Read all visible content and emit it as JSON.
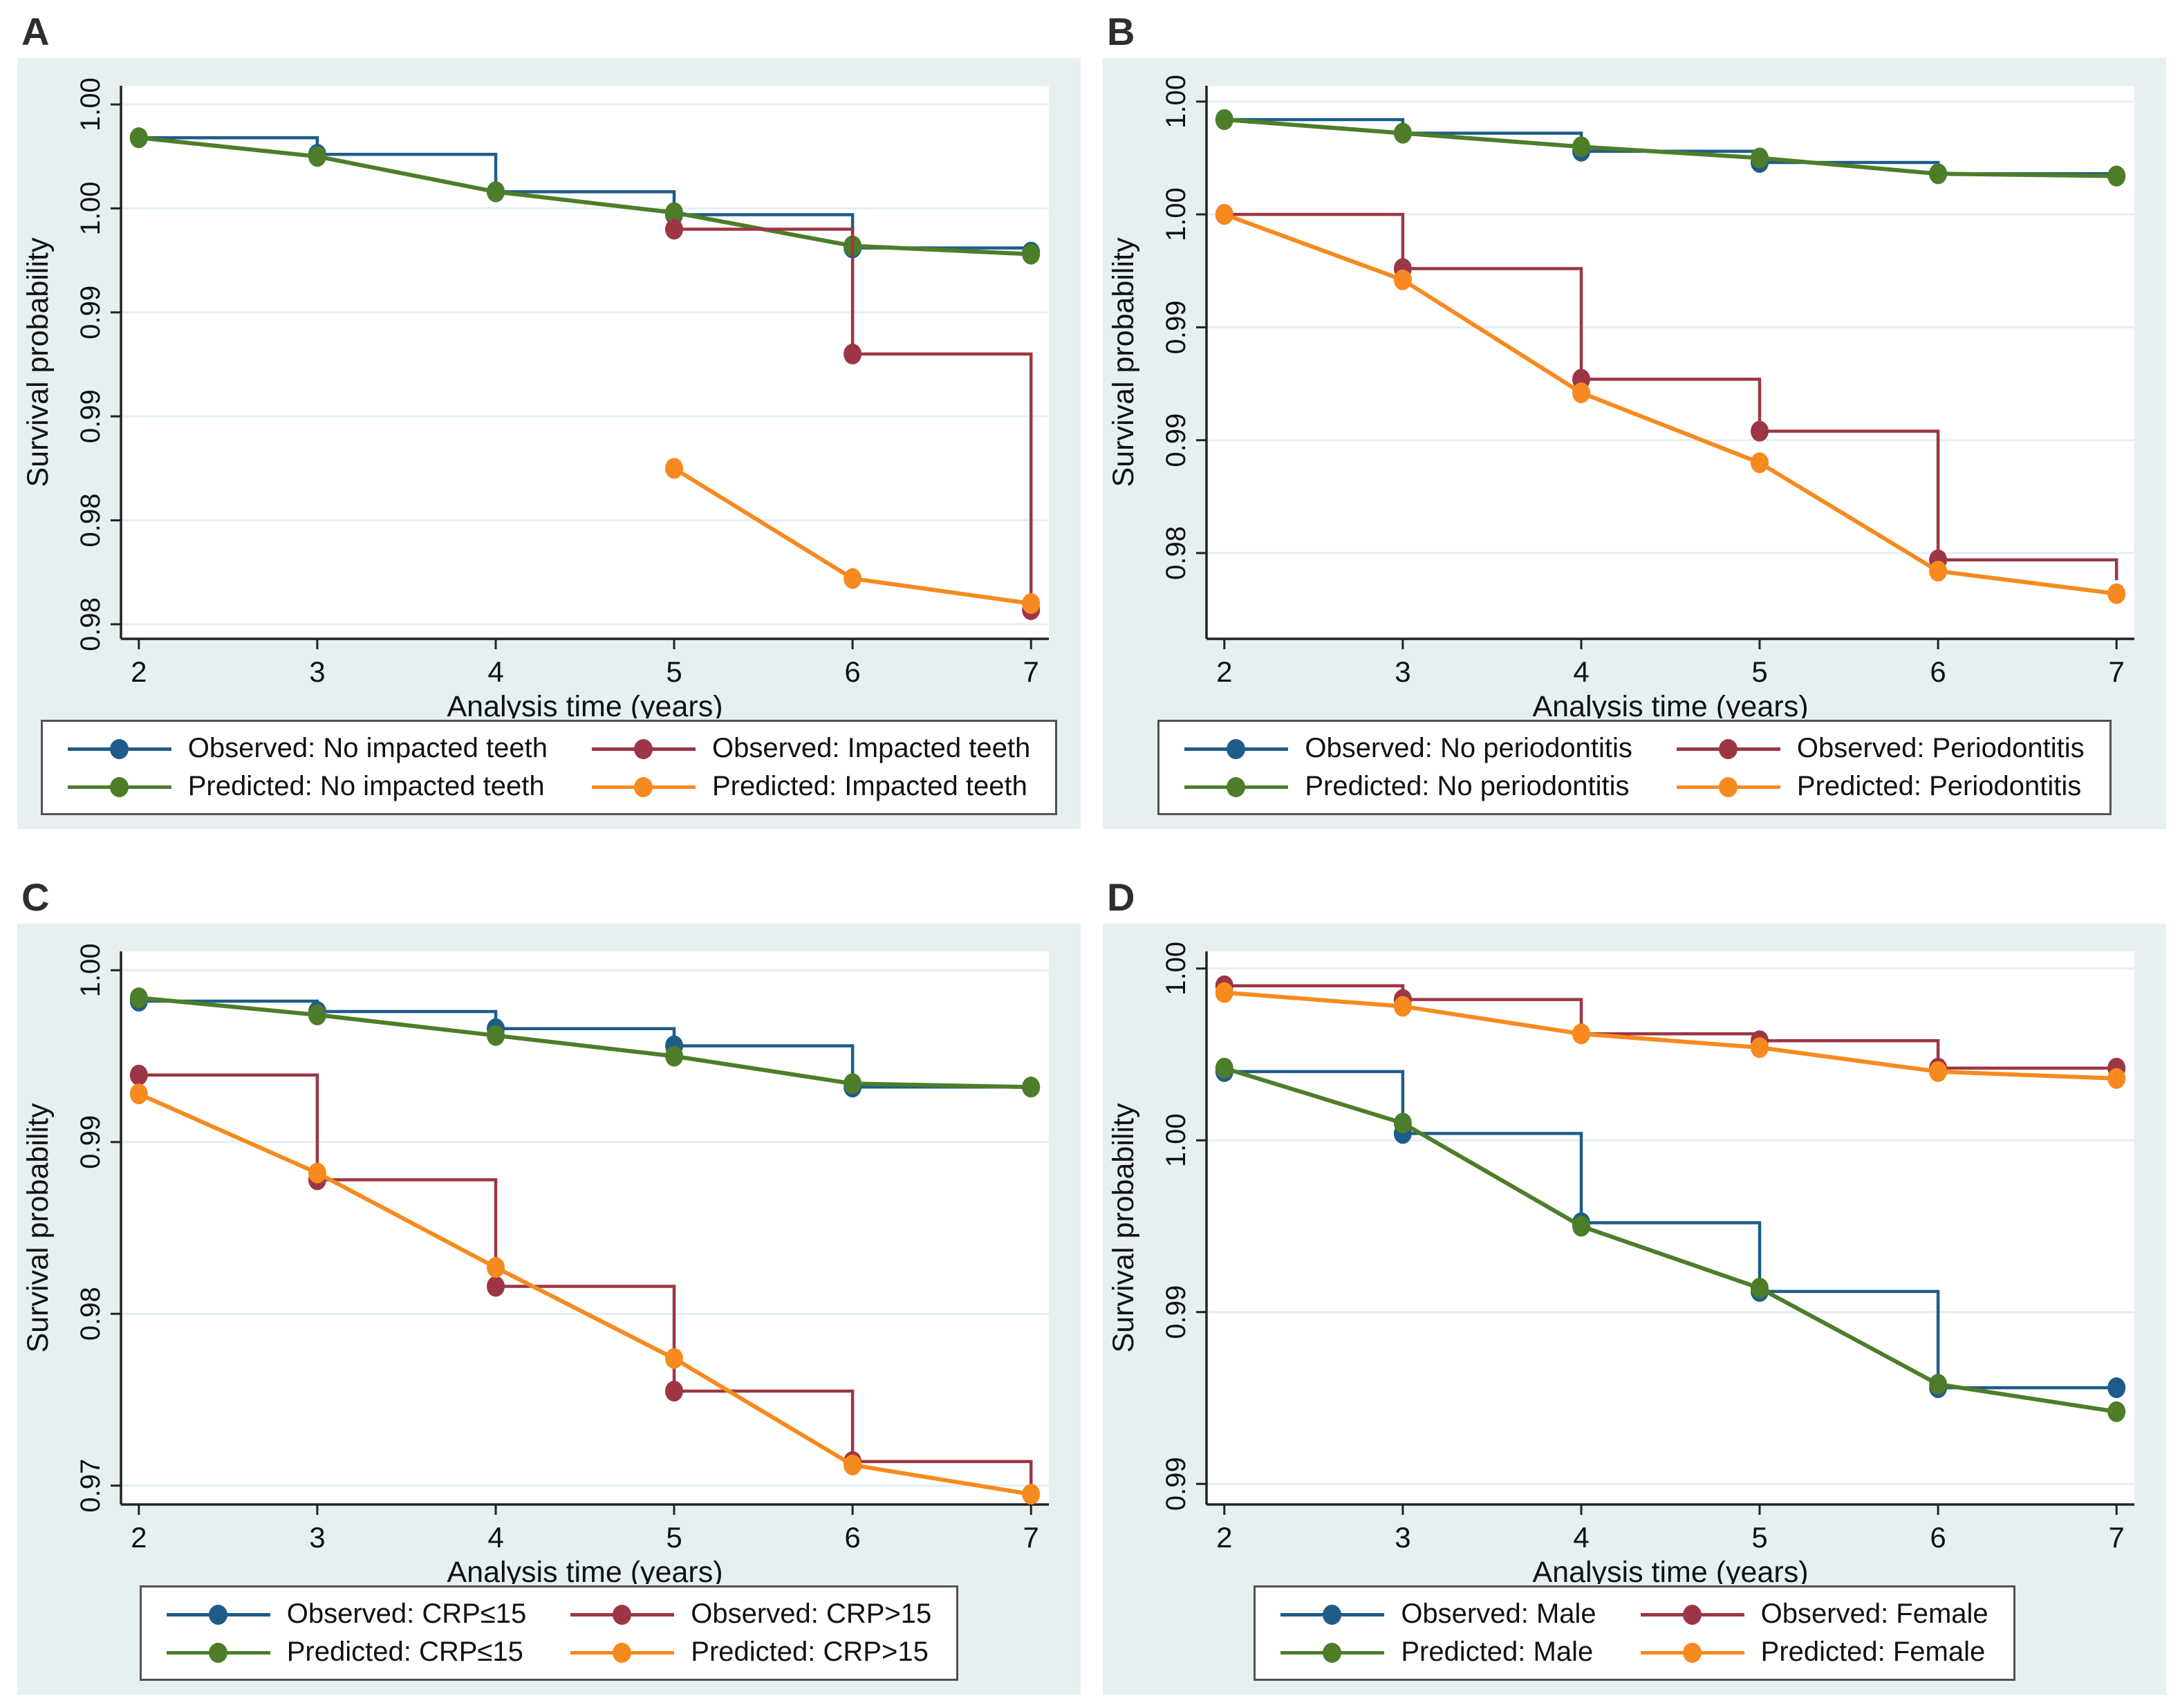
{
  "figure": {
    "background": "#ffffff",
    "panel_background": "#e6f0f1",
    "gridline_color": "#e3eef3",
    "axis_color": "#222222",
    "legend_border_color": "#525252"
  },
  "panels": [
    {
      "label": "A",
      "chart_data": {
        "type": "line",
        "title": "",
        "xlabel": "Analysis time (years)",
        "ylabel": "Survival probability",
        "x_ticks": [
          2,
          3,
          4,
          5,
          6,
          7
        ],
        "xlim": [
          1.9,
          7.1
        ],
        "ylim": [
          0.9743,
          1.0009
        ],
        "grid": true,
        "legend_position": "below",
        "y_ticks": [
          {
            "value": 1.0,
            "label": "1.00"
          },
          {
            "value": 0.995,
            "label": "1.00"
          },
          {
            "value": 0.99,
            "label": "0.99"
          },
          {
            "value": 0.985,
            "label": "0.99"
          },
          {
            "value": 0.98,
            "label": "0.98"
          },
          {
            "value": 0.975,
            "label": "0.98"
          }
        ],
        "series": [
          {
            "name": "Observed: No impacted teeth",
            "style": "step",
            "color": "#1e5c8a",
            "z": 1,
            "x": [
              2,
              3,
              4,
              5,
              6,
              7
            ],
            "y": [
              0.9984,
              0.9976,
              0.9958,
              0.9947,
              0.9931,
              0.9929
            ]
          },
          {
            "name": "Observed: Impacted teeth",
            "style": "step",
            "color": "#9d3644",
            "z": 3,
            "x": [
              5,
              6,
              7
            ],
            "y": [
              0.994,
              0.988,
              0.9757
            ]
          },
          {
            "name": "Predicted: No impacted teeth",
            "style": "line",
            "color": "#4d7d29",
            "z": 2,
            "x": [
              2,
              3,
              4,
              5,
              6,
              7
            ],
            "y": [
              0.9984,
              0.9975,
              0.9958,
              0.9948,
              0.9932,
              0.9928
            ]
          },
          {
            "name": "Predicted: Impacted teeth",
            "style": "line",
            "color": "#f68a1e",
            "z": 4,
            "x": [
              5,
              6,
              7
            ],
            "y": [
              0.9825,
              0.9772,
              0.976
            ]
          }
        ]
      }
    },
    {
      "label": "B",
      "chart_data": {
        "type": "line",
        "title": "",
        "xlabel": "Analysis time (years)",
        "ylabel": "Survival probability",
        "x_ticks": [
          2,
          3,
          4,
          5,
          6,
          7
        ],
        "xlim": [
          1.9,
          7.1
        ],
        "ylim": [
          0.9762,
          1.0007
        ],
        "grid": true,
        "legend_position": "below",
        "y_ticks": [
          {
            "value": 1.0,
            "label": "1.00"
          },
          {
            "value": 0.995,
            "label": "1.00"
          },
          {
            "value": 0.99,
            "label": "0.99"
          },
          {
            "value": 0.985,
            "label": "0.99"
          },
          {
            "value": 0.98,
            "label": "0.98"
          }
        ],
        "series": [
          {
            "name": "Observed: No periodontitis",
            "style": "step",
            "color": "#1e5c8a",
            "z": 1,
            "x": [
              2,
              3,
              4,
              5,
              6,
              7
            ],
            "y": [
              0.9992,
              0.9986,
              0.9978,
              0.9973,
              0.9968,
              0.9967
            ]
          },
          {
            "name": "Observed: Periodontitis",
            "style": "step",
            "color": "#9d3644",
            "z": 3,
            "x": [
              2,
              3,
              4,
              5,
              6,
              7
            ],
            "y": [
              0.995,
              0.9926,
              0.9877,
              0.9854,
              0.9797,
              0.9788
            ],
            "marker_x": [
              2,
              3,
              4,
              5,
              6
            ]
          },
          {
            "name": "Predicted: No periodontitis",
            "style": "line",
            "color": "#4d7d29",
            "z": 2,
            "x": [
              2,
              3,
              4,
              5,
              6,
              7
            ],
            "y": [
              0.9992,
              0.9986,
              0.998,
              0.9975,
              0.9968,
              0.9967
            ]
          },
          {
            "name": "Predicted: Periodontitis",
            "style": "line",
            "color": "#f68a1e",
            "z": 4,
            "x": [
              2,
              3,
              4,
              5,
              6,
              7
            ],
            "y": [
              0.995,
              0.9921,
              0.9871,
              0.984,
              0.9792,
              0.9782
            ]
          }
        ]
      }
    },
    {
      "label": "C",
      "chart_data": {
        "type": "line",
        "title": "",
        "xlabel": "Analysis time (years)",
        "ylabel": "Survival probability",
        "x_ticks": [
          2,
          3,
          4,
          5,
          6,
          7
        ],
        "xlim": [
          1.9,
          7.1
        ],
        "ylim": [
          0.9689,
          1.0011
        ],
        "grid": true,
        "legend_position": "below",
        "y_ticks": [
          {
            "value": 1.0,
            "label": "1.00"
          },
          {
            "value": 0.99,
            "label": "0.99"
          },
          {
            "value": 0.98,
            "label": "0.98"
          },
          {
            "value": 0.97,
            "label": "0.97"
          }
        ],
        "series": [
          {
            "name": "Observed: CRP≤15",
            "style": "step",
            "color": "#1e5c8a",
            "z": 1,
            "x": [
              2,
              3,
              4,
              5,
              6,
              7
            ],
            "y": [
              0.9982,
              0.9976,
              0.9966,
              0.9956,
              0.9932,
              0.9932
            ]
          },
          {
            "name": "Observed: CRP>15",
            "style": "step",
            "color": "#9d3644",
            "z": 3,
            "x": [
              2,
              3,
              4,
              5,
              6,
              7
            ],
            "y": [
              0.9939,
              0.9878,
              0.9816,
              0.9755,
              0.9714,
              0.9697
            ],
            "marker_x": [
              2,
              3,
              4,
              5,
              6
            ]
          },
          {
            "name": "Predicted: CRP≤15",
            "style": "line",
            "color": "#4d7d29",
            "z": 2,
            "x": [
              2,
              3,
              4,
              5,
              6,
              7
            ],
            "y": [
              0.9984,
              0.9974,
              0.9962,
              0.995,
              0.9934,
              0.9932
            ]
          },
          {
            "name": "Predicted: CRP>15",
            "style": "line",
            "color": "#f68a1e",
            "z": 4,
            "x": [
              2,
              3,
              4,
              5,
              6,
              7
            ],
            "y": [
              0.9928,
              0.9882,
              0.9827,
              0.9774,
              0.9712,
              0.9695
            ]
          }
        ]
      }
    },
    {
      "label": "D",
      "chart_data": {
        "type": "line",
        "title": "",
        "xlabel": "Analysis time (years)",
        "ylabel": "Survival probability",
        "x_ticks": [
          2,
          3,
          4,
          5,
          6,
          7
        ],
        "xlim": [
          1.9,
          7.1
        ],
        "ylim": [
          0.9844,
          1.0005
        ],
        "grid": true,
        "legend_position": "below",
        "y_ticks": [
          {
            "value": 1.0,
            "label": "1.00"
          },
          {
            "value": 0.995,
            "label": "1.00"
          },
          {
            "value": 0.99,
            "label": "0.99"
          },
          {
            "value": 0.985,
            "label": "0.99"
          }
        ],
        "series": [
          {
            "name": "Observed: Male",
            "style": "step",
            "color": "#1e5c8a",
            "z": 1,
            "x": [
              2,
              3,
              4,
              5,
              6,
              7
            ],
            "y": [
              0.997,
              0.9952,
              0.9926,
              0.9906,
              0.9878,
              0.9878
            ]
          },
          {
            "name": "Observed: Female",
            "style": "step",
            "color": "#9d3644",
            "z": 3,
            "x": [
              2,
              3,
              4,
              5,
              6,
              7
            ],
            "y": [
              0.9995,
              0.9991,
              0.9981,
              0.9979,
              0.9971,
              0.9971
            ]
          },
          {
            "name": "Predicted: Male",
            "style": "line",
            "color": "#4d7d29",
            "z": 2,
            "x": [
              2,
              3,
              4,
              5,
              6,
              7
            ],
            "y": [
              0.9971,
              0.9955,
              0.9925,
              0.9907,
              0.9879,
              0.9871
            ]
          },
          {
            "name": "Predicted: Female",
            "style": "line",
            "color": "#f68a1e",
            "z": 4,
            "x": [
              2,
              3,
              4,
              5,
              6,
              7
            ],
            "y": [
              0.9993,
              0.9989,
              0.9981,
              0.9977,
              0.997,
              0.9968
            ]
          }
        ]
      }
    }
  ]
}
